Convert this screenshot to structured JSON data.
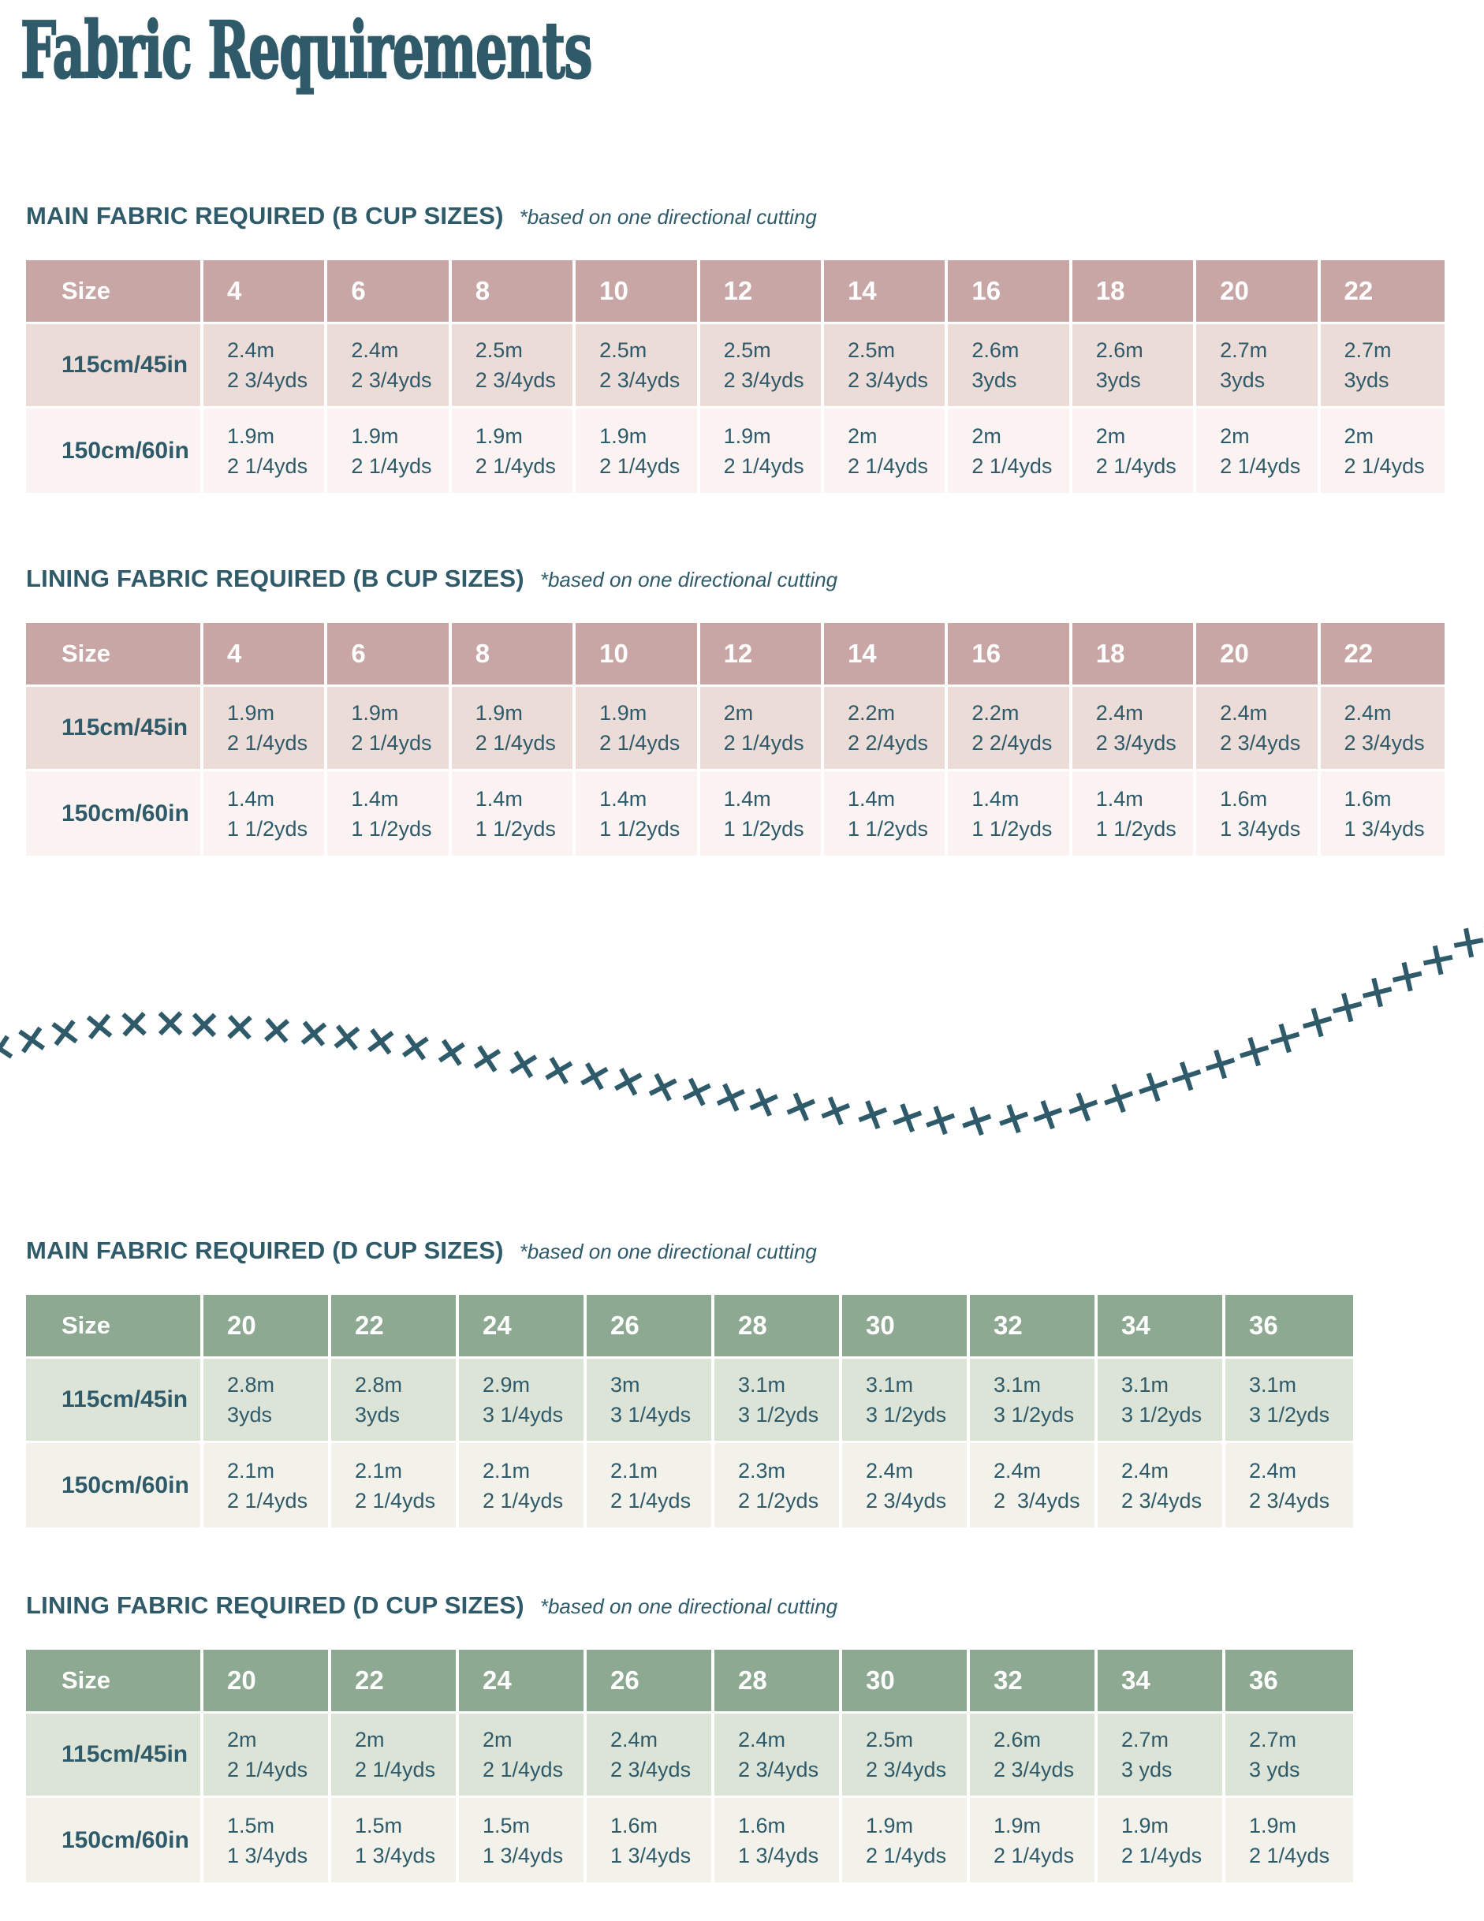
{
  "title": "Fabric Requirements",
  "colors": {
    "teal": "#2E5A69",
    "pink_header": "#C9A6A6",
    "pink_row": "#ECDCD8",
    "pink_row_alt": "#FAF3F1",
    "green_header": "#8EA991",
    "green_row": "#DCE4D7",
    "green_row_alt": "#F3F2EA"
  },
  "decoration": {
    "name": "cross-stitch-trail",
    "glyph": "×"
  },
  "tables": [
    {
      "id": "main-b-cup",
      "heading": "MAIN FABRIC REQUIRED (B CUP SIZES)",
      "note": "*based on one directional cutting",
      "theme": "pink",
      "size_label": "Size",
      "sizes": [
        "4",
        "6",
        "8",
        "10",
        "12",
        "14",
        "16",
        "18",
        "20",
        "22"
      ],
      "rows": [
        {
          "label": "115cm/45in",
          "cells": [
            [
              "2.4m",
              "2 3/4yds"
            ],
            [
              "2.4m",
              "2 3/4yds"
            ],
            [
              "2.5m",
              "2 3/4yds"
            ],
            [
              "2.5m",
              "2 3/4yds"
            ],
            [
              "2.5m",
              "2 3/4yds"
            ],
            [
              "2.5m",
              "2 3/4yds"
            ],
            [
              "2.6m",
              "3yds"
            ],
            [
              "2.6m",
              "3yds"
            ],
            [
              "2.7m",
              "3yds"
            ],
            [
              "2.7m",
              "3yds"
            ]
          ]
        },
        {
          "label": "150cm/60in",
          "cells": [
            [
              "1.9m",
              "2 1/4yds"
            ],
            [
              "1.9m",
              "2 1/4yds"
            ],
            [
              "1.9m",
              "2 1/4yds"
            ],
            [
              "1.9m",
              "2 1/4yds"
            ],
            [
              "1.9m",
              "2 1/4yds"
            ],
            [
              "2m",
              "2 1/4yds"
            ],
            [
              "2m",
              "2 1/4yds"
            ],
            [
              "2m",
              "2 1/4yds"
            ],
            [
              "2m",
              "2 1/4yds"
            ],
            [
              "2m",
              "2 1/4yds"
            ]
          ]
        }
      ]
    },
    {
      "id": "lining-b-cup",
      "heading": "LINING FABRIC REQUIRED (B CUP SIZES)",
      "note": "*based on one directional cutting",
      "theme": "pink",
      "size_label": "Size",
      "sizes": [
        "4",
        "6",
        "8",
        "10",
        "12",
        "14",
        "16",
        "18",
        "20",
        "22"
      ],
      "rows": [
        {
          "label": "115cm/45in",
          "cells": [
            [
              "1.9m",
              "2 1/4yds"
            ],
            [
              "1.9m",
              "2 1/4yds"
            ],
            [
              "1.9m",
              "2 1/4yds"
            ],
            [
              "1.9m",
              "2 1/4yds"
            ],
            [
              "2m",
              "2 1/4yds"
            ],
            [
              "2.2m",
              "2 2/4yds"
            ],
            [
              "2.2m",
              "2 2/4yds"
            ],
            [
              "2.4m",
              "2 3/4yds"
            ],
            [
              "2.4m",
              "2 3/4yds"
            ],
            [
              "2.4m",
              "2 3/4yds"
            ]
          ]
        },
        {
          "label": "150cm/60in",
          "cells": [
            [
              "1.4m",
              "1 1/2yds"
            ],
            [
              "1.4m",
              "1 1/2yds"
            ],
            [
              "1.4m",
              "1 1/2yds"
            ],
            [
              "1.4m",
              "1 1/2yds"
            ],
            [
              "1.4m",
              "1 1/2yds"
            ],
            [
              "1.4m",
              "1 1/2yds"
            ],
            [
              "1.4m",
              "1 1/2yds"
            ],
            [
              "1.4m",
              "1 1/2yds"
            ],
            [
              "1.6m",
              "1 3/4yds"
            ],
            [
              "1.6m",
              "1 3/4yds"
            ]
          ]
        }
      ]
    },
    {
      "id": "main-d-cup",
      "heading": "MAIN FABRIC REQUIRED (D CUP SIZES)",
      "note": "*based on one directional cutting",
      "theme": "green",
      "size_label": "Size",
      "sizes": [
        "20",
        "22",
        "24",
        "26",
        "28",
        "30",
        "32",
        "34",
        "36"
      ],
      "rows": [
        {
          "label": "115cm/45in",
          "cells": [
            [
              "2.8m",
              "3yds"
            ],
            [
              "2.8m",
              "3yds"
            ],
            [
              "2.9m",
              "3 1/4yds"
            ],
            [
              "3m",
              "3 1/4yds"
            ],
            [
              "3.1m",
              "3 1/2yds"
            ],
            [
              "3.1m",
              "3 1/2yds"
            ],
            [
              "3.1m",
              "3 1/2yds"
            ],
            [
              "3.1m",
              "3 1/2yds"
            ],
            [
              "3.1m",
              "3 1/2yds"
            ]
          ]
        },
        {
          "label": "150cm/60in",
          "cells": [
            [
              "2.1m",
              "2 1/4yds"
            ],
            [
              "2.1m",
              "2 1/4yds"
            ],
            [
              "2.1m",
              "2 1/4yds"
            ],
            [
              "2.1m",
              "2 1/4yds"
            ],
            [
              "2.3m",
              "2 1/2yds"
            ],
            [
              "2.4m",
              "2 3/4yds"
            ],
            [
              "2.4m",
              "2  3/4yds"
            ],
            [
              "2.4m",
              "2 3/4yds"
            ],
            [
              "2.4m",
              "2 3/4yds"
            ]
          ]
        }
      ]
    },
    {
      "id": "lining-d-cup",
      "heading": "LINING FABRIC REQUIRED (D CUP SIZES)",
      "note": "*based on one directional cutting",
      "theme": "green",
      "size_label": "Size",
      "sizes": [
        "20",
        "22",
        "24",
        "26",
        "28",
        "30",
        "32",
        "34",
        "36"
      ],
      "rows": [
        {
          "label": "115cm/45in",
          "cells": [
            [
              "2m",
              "2 1/4yds"
            ],
            [
              "2m",
              "2 1/4yds"
            ],
            [
              "2m",
              "2 1/4yds"
            ],
            [
              "2.4m",
              "2 3/4yds"
            ],
            [
              "2.4m",
              "2 3/4yds"
            ],
            [
              "2.5m",
              "2 3/4yds"
            ],
            [
              "2.6m",
              "2 3/4yds"
            ],
            [
              "2.7m",
              "3 yds"
            ],
            [
              "2.7m",
              "3 yds"
            ]
          ]
        },
        {
          "label": "150cm/60in",
          "cells": [
            [
              "1.5m",
              "1 3/4yds"
            ],
            [
              "1.5m",
              "1 3/4yds"
            ],
            [
              "1.5m",
              "1 3/4yds"
            ],
            [
              "1.6m",
              "1 3/4yds"
            ],
            [
              "1.6m",
              "1 3/4yds"
            ],
            [
              "1.9m",
              "2 1/4yds"
            ],
            [
              "1.9m",
              "2 1/4yds"
            ],
            [
              "1.9m",
              "2 1/4yds"
            ],
            [
              "1.9m",
              "2 1/4yds"
            ]
          ]
        }
      ]
    }
  ]
}
